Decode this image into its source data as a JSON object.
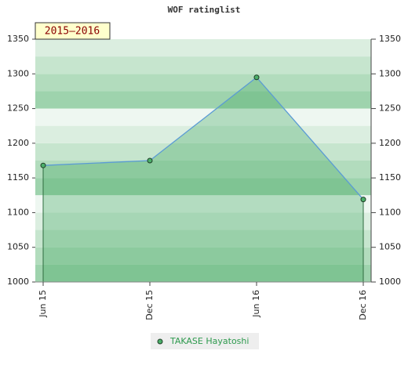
{
  "chart_data": {
    "type": "line",
    "title": "WOF ratinglist",
    "annotation": "2015–2016",
    "categories": [
      "Jun 15",
      "Dec 15",
      "Jun 16",
      "Dec 16"
    ],
    "series": [
      {
        "name": "TAKASE Hayatoshi",
        "color": "#5b9bd5",
        "values": [
          1168,
          1175,
          1295,
          1119
        ]
      }
    ],
    "ylim": [
      1000,
      1350
    ],
    "yticks": [
      1000,
      1050,
      1100,
      1150,
      1200,
      1250,
      1300,
      1350
    ],
    "y2lim": [
      1000,
      1350
    ],
    "y2ticks": [
      1000,
      1050,
      1100,
      1150,
      1200,
      1250,
      1300,
      1350
    ],
    "grid": true,
    "legend": "bottom"
  }
}
